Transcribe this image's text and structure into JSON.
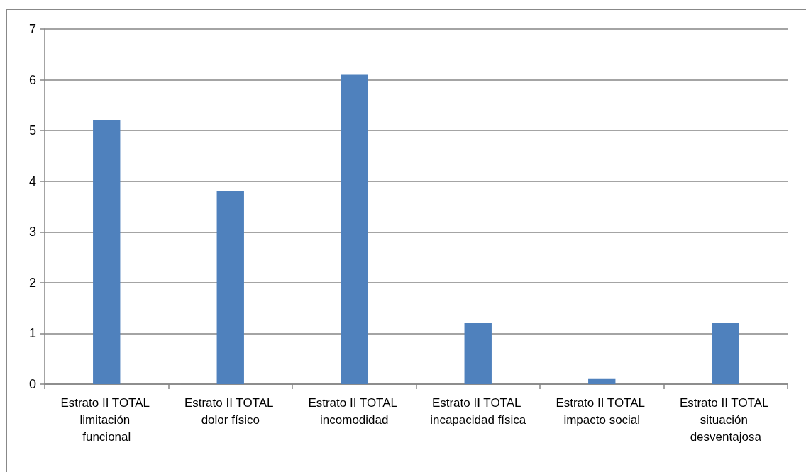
{
  "chart_data": {
    "type": "bar",
    "categories": [
      "Estrato II TOTAL limitación funcional",
      "Estrato II TOTAL dolor físico",
      "Estrato II TOTAL incomodidad",
      "Estrato II TOTAL incapacidad física",
      "Estrato II TOTAL impacto social",
      "Estrato II TOTAL situación desventajosa"
    ],
    "values": [
      5.2,
      3.8,
      6.1,
      1.2,
      0.1,
      1.2
    ],
    "color": "#4f81bd",
    "ylim": [
      0,
      7
    ],
    "yticks": [
      0,
      1,
      2,
      3,
      4,
      5,
      6,
      7
    ],
    "grid": "y"
  }
}
